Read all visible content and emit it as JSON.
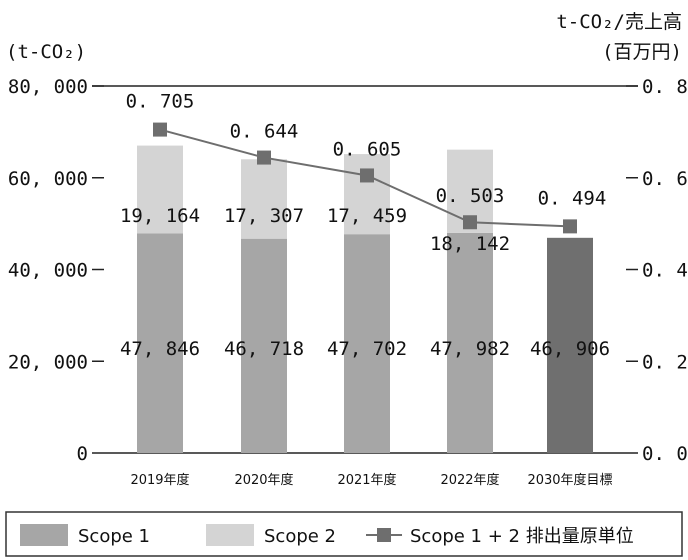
{
  "chart_data": {
    "type": "bar",
    "left_unit": "(t-CO₂)",
    "right_unit_line1": "t-CO₂/売上高",
    "right_unit_line2": "(百万円)",
    "categories": [
      "2019年度",
      "2020年度",
      "2021年度",
      "2022年度",
      "2030年度目標"
    ],
    "y_left": {
      "ylim": [
        0,
        80000
      ],
      "ticks": [
        0,
        20000,
        40000,
        60000,
        80000
      ],
      "tick_labels": [
        "0",
        "20, 000",
        "40, 000",
        "60, 000",
        "80, 000"
      ]
    },
    "y_right": {
      "ylim": [
        0,
        0.8
      ],
      "ticks": [
        0,
        0.2,
        0.4,
        0.6,
        0.8
      ],
      "tick_labels": [
        "0. 0",
        "0. 2",
        "0. 4",
        "0. 6",
        "0. 8"
      ]
    },
    "series": [
      {
        "name": "Scope 1",
        "kind": "bar",
        "color": "#a6a6a6",
        "values": [
          47846,
          46718,
          47702,
          47982,
          null
        ],
        "labels": [
          "47, 846",
          "46, 718",
          "47, 702",
          "47, 982",
          ""
        ]
      },
      {
        "name": "Scope 2",
        "kind": "bar",
        "color": "#d4d4d4",
        "values": [
          19164,
          17307,
          17459,
          18142,
          null
        ],
        "labels": [
          "19, 164",
          "17, 307",
          "17, 459",
          "18, 142",
          ""
        ]
      },
      {
        "name": "Scope 1+2排出量原単位",
        "kind": "line",
        "axis": "right",
        "color": "#6e6e6e",
        "values": [
          0.705,
          0.644,
          0.605,
          0.503,
          0.494
        ],
        "labels": [
          "0. 705",
          "0. 644",
          "0. 605",
          "0. 503",
          "0. 494"
        ]
      }
    ],
    "target": {
      "category": "2030年度目標",
      "value": 46906,
      "label": "46, 906",
      "color": "#6f6f6f"
    },
    "legend": {
      "placement": "bottom",
      "items": [
        {
          "label": "Scope 1",
          "color": "#a6a6a6"
        },
        {
          "label": "Scope 2",
          "color": "#d4d4d4"
        },
        {
          "label": "Scope 1 + 2 排出量原単位",
          "color": "#6e6e6e"
        }
      ]
    }
  }
}
